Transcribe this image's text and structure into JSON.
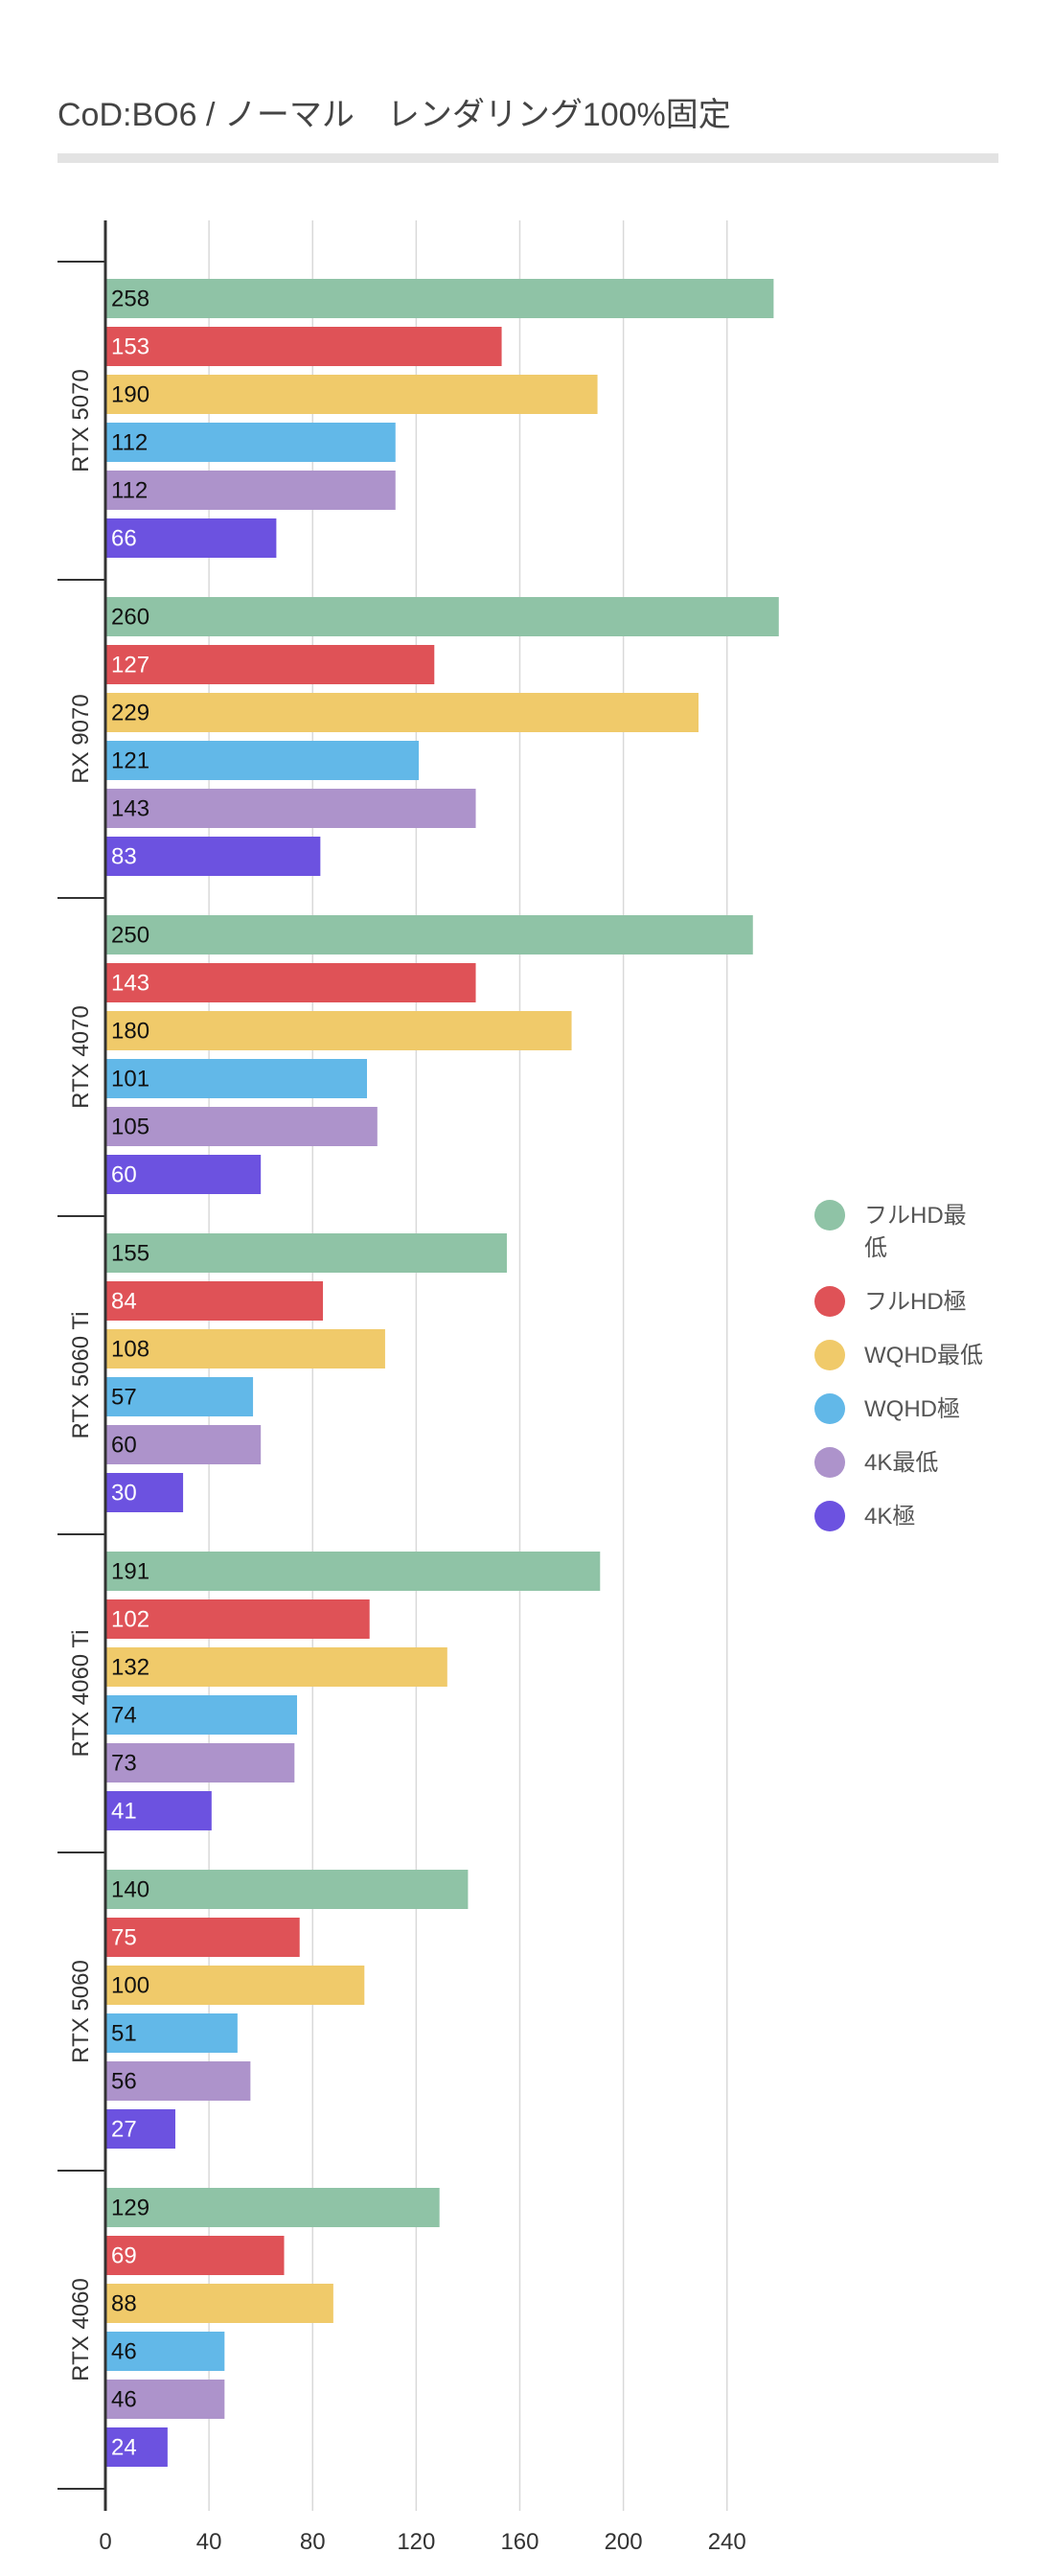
{
  "chart_data": {
    "type": "bar",
    "orientation": "horizontal",
    "title": "CoD:BO6 / ノーマル　レンダリング100%固定",
    "categories": [
      "RTX 5070",
      "RX 9070",
      "RTX 4070",
      "RTX 5060 Ti",
      "RTX 4060 Ti",
      "RTX 5060",
      "RTX 4060"
    ],
    "series": [
      {
        "name": "フルHD最低",
        "color": "#8fc3a6",
        "label_color": "#111111",
        "values": [
          258,
          260,
          250,
          155,
          191,
          140,
          129
        ]
      },
      {
        "name": "フルHD極",
        "color": "#df5257",
        "label_color": "#ffffff",
        "values": [
          153,
          127,
          143,
          84,
          102,
          75,
          69
        ]
      },
      {
        "name": "WQHD最低",
        "color": "#f0ca6a",
        "label_color": "#111111",
        "values": [
          190,
          229,
          180,
          108,
          132,
          100,
          88
        ]
      },
      {
        "name": "WQHD極",
        "color": "#62b8e8",
        "label_color": "#111111",
        "values": [
          112,
          121,
          101,
          57,
          74,
          51,
          46
        ]
      },
      {
        "name": "4K最低",
        "color": "#ad93cb",
        "label_color": "#111111",
        "values": [
          112,
          143,
          105,
          60,
          73,
          56,
          46
        ]
      },
      {
        "name": "4K極",
        "color": "#6c52e0",
        "label_color": "#ffffff",
        "values": [
          66,
          83,
          60,
          30,
          41,
          27,
          24
        ]
      }
    ],
    "x_ticks": [
      0,
      40,
      80,
      120,
      160,
      200,
      240
    ],
    "xlim": [
      0,
      280
    ],
    "grid": true,
    "legend": {
      "position": "right"
    }
  }
}
